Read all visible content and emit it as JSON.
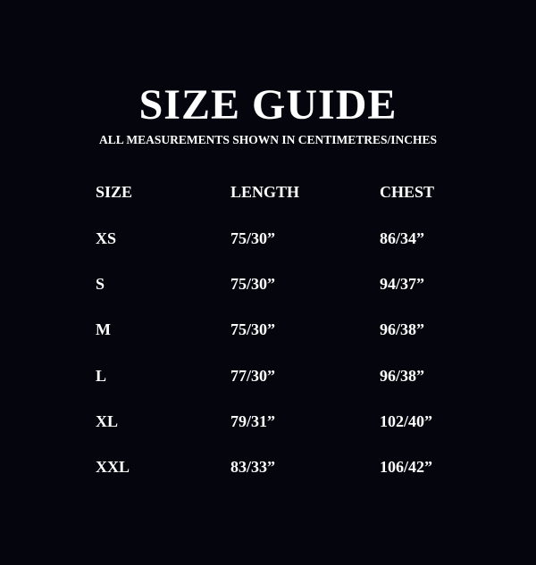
{
  "title": "SIZE GUIDE",
  "subtitle": "ALL MEASUREMENTS SHOWN IN CENTIMETRES/INCHES",
  "headers": [
    "SIZE",
    "LENGTH",
    "CHEST"
  ],
  "rows": [
    [
      "XS",
      "75/30”",
      "86/34”"
    ],
    [
      "S",
      "75/30”",
      "94/37”"
    ],
    [
      "M",
      "75/30”",
      "96/38”"
    ],
    [
      "L",
      "77/30”",
      "96/38”"
    ],
    [
      "XL",
      "79/31”",
      "102/40”"
    ],
    [
      "XXL",
      "83/33”",
      "106/42”"
    ]
  ],
  "colors": {
    "background": "#05050d",
    "text": "#ffffff"
  }
}
